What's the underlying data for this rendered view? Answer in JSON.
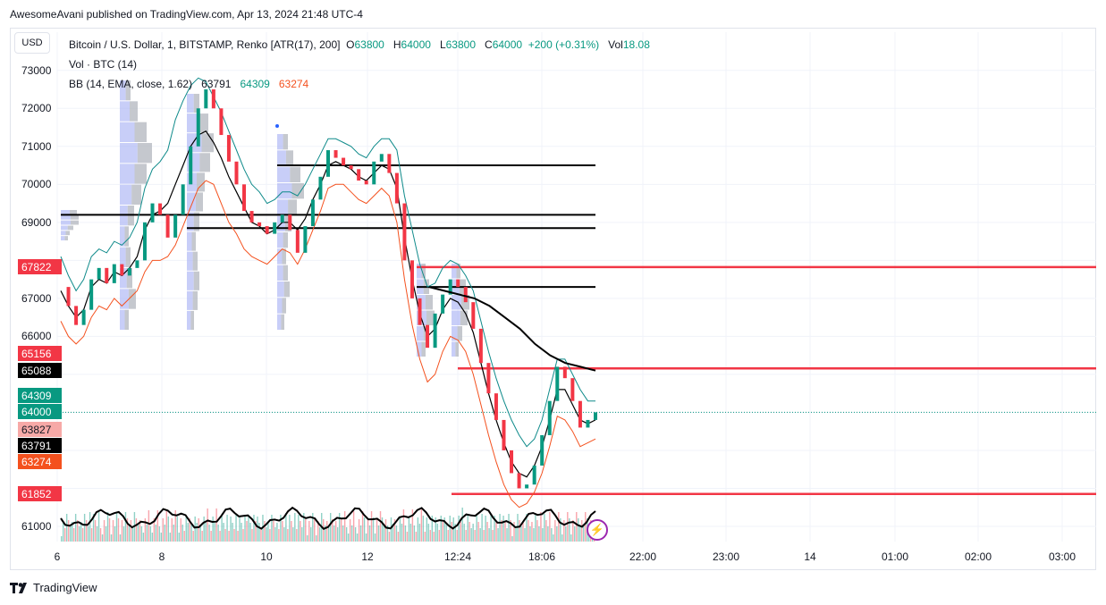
{
  "header": {
    "published_by": "AwesomeAvani published on TradingView.com, Apr 13, 2024 21:48 UTC-4"
  },
  "currency_button": "USD",
  "legend": {
    "symbol": "Bitcoin / U.S. Dollar, 1, BITSTAMP, Renko [ATR(17), 200]",
    "o_label": "O",
    "o_value": "63800",
    "h_label": "H",
    "h_value": "64000",
    "l_label": "L",
    "l_value": "63800",
    "c_label": "C",
    "c_value": "64000",
    "change": "+200 (+0.31%)",
    "vol_label": "Vol",
    "vol_value": "18.08",
    "vol_indicator": "Vol · BTC (14)",
    "bb_label": "BB (14, EMA, close, 1.62)",
    "bb_basis": "63791",
    "bb_upper": "64309",
    "bb_lower": "63274"
  },
  "price_tags": [
    {
      "text": "67822",
      "color": "#f23645"
    },
    {
      "text": "65156",
      "color": "#f23645"
    },
    {
      "text": "65088",
      "color": "#000000"
    },
    {
      "text": "64309",
      "color": "#089981"
    },
    {
      "text": "64000",
      "color": "#089981"
    },
    {
      "text": "63827",
      "color": "#f7a9a7"
    },
    {
      "text": "63791",
      "color": "#000000"
    },
    {
      "text": "63274",
      "color": "#f4511e"
    },
    {
      "text": "61852",
      "color": "#f23645"
    }
  ],
  "footer": {
    "brand": "TradingView"
  },
  "colors": {
    "up": "#089981",
    "down": "#f23645",
    "bb_upper": "#0e8a8a",
    "bb_lower": "#f4511e",
    "basis": "#000000",
    "hline_red": "#f23645"
  },
  "chart_data": {
    "type": "line",
    "title": "Bitcoin / U.S. Dollar, 1, BITSTAMP, Renko [ATR(17), 200]",
    "y_ticks": [
      73000,
      72000,
      71000,
      70000,
      69000,
      68000,
      67000,
      66000,
      65000,
      64000,
      63000,
      62000,
      61000
    ],
    "y_tick_labels": [
      "73000",
      "72000",
      "71000",
      "70000",
      "69000",
      "",
      "67000",
      "66000",
      "",
      "",
      "",
      "",
      "61000"
    ],
    "ylim": [
      60600,
      73300
    ],
    "x_tick_labels": [
      "6",
      "8",
      "10",
      "12",
      "12:24",
      "18:06",
      "22:00",
      "23:00",
      "14",
      "01:00",
      "02:00",
      "03:00"
    ],
    "grid": true,
    "price_series": {
      "name": "close",
      "values": [
        67300,
        66800,
        66300,
        66700,
        67500,
        67800,
        67400,
        67900,
        67600,
        67800,
        68000,
        69000,
        69500,
        69200,
        68600,
        69200,
        70000,
        71000,
        72000,
        72500,
        72000,
        71300,
        70600,
        70000,
        69300,
        69000,
        68900,
        68700,
        69000,
        69200,
        68800,
        68200,
        68900,
        69600,
        70200,
        70900,
        70700,
        70500,
        70400,
        70100,
        70000,
        70600,
        70800,
        70300,
        69500,
        68000,
        67000,
        66300,
        65700,
        66600,
        67100,
        67500,
        67300,
        66900,
        66200,
        65300,
        64500,
        63800,
        63000,
        62400,
        62000,
        62100,
        62600,
        63400,
        64300,
        65200,
        64900,
        64300,
        63600,
        63800,
        64000
      ]
    },
    "bb_upper": {
      "name": "upper",
      "values": [
        68100,
        67600,
        67200,
        67500,
        68100,
        68300,
        68200,
        68500,
        68400,
        68600,
        69000,
        69900,
        70400,
        70600,
        70900,
        71700,
        72200,
        72600,
        72800,
        72700,
        72300,
        71900,
        71400,
        70900,
        70400,
        70000,
        69800,
        69500,
        69600,
        69800,
        69800,
        69700,
        70000,
        70400,
        70800,
        71200,
        71200,
        71100,
        71000,
        70800,
        70700,
        71000,
        71200,
        71200,
        70900,
        69700,
        68800,
        67900,
        67300,
        67400,
        67800,
        68000,
        67900,
        67600,
        67200,
        66400,
        65600,
        64900,
        64300,
        63800,
        63400,
        63100,
        63300,
        63800,
        64600,
        65400,
        65400,
        65000,
        64600,
        64300,
        64300
      ]
    },
    "bb_lower": {
      "name": "lower",
      "values": [
        66400,
        66000,
        65800,
        66000,
        66500,
        66800,
        66700,
        67000,
        66800,
        67000,
        67200,
        67700,
        68000,
        68000,
        68100,
        68400,
        68900,
        69400,
        69900,
        70100,
        70000,
        69500,
        69000,
        68700,
        68300,
        68100,
        68000,
        67900,
        68100,
        68300,
        68200,
        67900,
        68300,
        68800,
        69300,
        69900,
        70000,
        70000,
        69800,
        69600,
        69500,
        69700,
        69900,
        69700,
        69000,
        67500,
        66300,
        65400,
        64800,
        65000,
        65600,
        66000,
        65900,
        65600,
        65000,
        64200,
        63400,
        62700,
        62100,
        61700,
        61500,
        61600,
        61900,
        62400,
        63100,
        63900,
        63800,
        63500,
        63100,
        63200,
        63300
      ]
    },
    "bb_basis": {
      "name": "basis",
      "values": [
        67200,
        66800,
        66500,
        66700,
        67300,
        67500,
        67400,
        67700,
        67600,
        67800,
        68100,
        68800,
        69200,
        69300,
        69500,
        70000,
        70500,
        71000,
        71300,
        71400,
        71100,
        70700,
        70200,
        69800,
        69400,
        69000,
        68900,
        68700,
        68800,
        69000,
        69000,
        68800,
        69100,
        69600,
        70000,
        70500,
        70600,
        70500,
        70400,
        70200,
        70100,
        70300,
        70500,
        70400,
        69900,
        68600,
        67500,
        66600,
        66000,
        66200,
        66700,
        67000,
        66900,
        66600,
        66100,
        65300,
        64500,
        63800,
        63200,
        62700,
        62400,
        62300,
        62600,
        63100,
        63800,
        64600,
        64600,
        64200,
        63800,
        63700,
        63800
      ]
    },
    "vwap_curve": {
      "name": "vwap",
      "values": [
        67300,
        67200,
        67100,
        67000,
        66800,
        66500,
        66200,
        65800,
        65500,
        65300,
        65200,
        65100
      ]
    },
    "horizontal_levels": {
      "black": [
        70500,
        69200,
        68850,
        67300
      ],
      "red": [
        67822,
        65156,
        61852
      ]
    },
    "last_price": 64000
  }
}
